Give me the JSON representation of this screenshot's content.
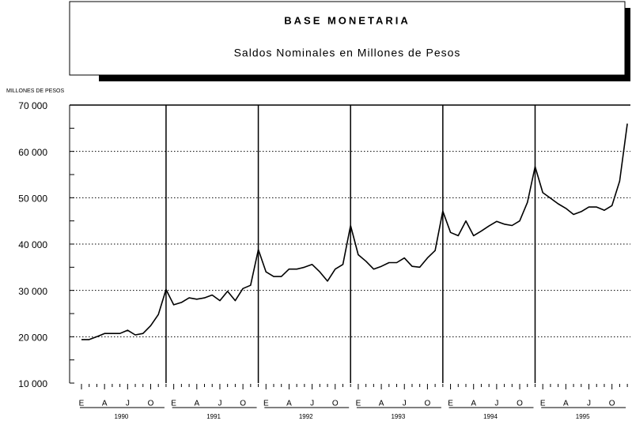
{
  "chart_data": {
    "type": "line",
    "title": "BASE MONETARIA",
    "subtitle": "Saldos Nominales en Millones de Pesos",
    "y_axis_label": "MILLONES  DE PESOS",
    "categories": [
      "E",
      null,
      null,
      "A",
      null,
      null,
      "J",
      null,
      null,
      "O",
      null,
      null,
      "E",
      null,
      null,
      "A",
      null,
      null,
      "J",
      null,
      null,
      "O",
      null,
      null,
      "E",
      null,
      null,
      "A",
      null,
      null,
      "J",
      null,
      null,
      "O",
      null,
      null,
      "E",
      null,
      null,
      "A",
      null,
      null,
      "J",
      null,
      null,
      "O",
      null,
      null,
      "E",
      null,
      null,
      "A",
      null,
      null,
      "J",
      null,
      null,
      "O",
      null,
      null,
      "E",
      null,
      null,
      "A",
      null,
      null,
      "J",
      null,
      null,
      "O",
      null,
      null
    ],
    "years": [
      "1990",
      "1991",
      "1992",
      "1993",
      "1994",
      "1995"
    ],
    "series": [
      {
        "name": "Base monetaria",
        "color": "#000000",
        "values": [
          19400,
          19400,
          20000,
          20700,
          20700,
          20700,
          21400,
          20400,
          20700,
          22400,
          24800,
          30200,
          26900,
          27400,
          28400,
          28100,
          28400,
          29000,
          27800,
          29800,
          27800,
          30400,
          31100,
          38800,
          34000,
          33000,
          33000,
          34600,
          34600,
          35000,
          35600,
          34000,
          32000,
          34600,
          35600,
          44000,
          37700,
          36300,
          34600,
          35200,
          36000,
          36000,
          37000,
          35200,
          35000,
          37000,
          38600,
          47100,
          42500,
          41800,
          45000,
          41800,
          42800,
          43900,
          44900,
          44300,
          44000,
          45000,
          49000,
          56700,
          51100,
          49900,
          48700,
          47700,
          46400,
          47000,
          48000,
          48000,
          47300,
          48300,
          53600,
          66000
        ]
      }
    ],
    "ylim": [
      10000,
      70000
    ],
    "yticks": [
      {
        "value": 10000,
        "label": "10 000"
      },
      {
        "value": 20000,
        "label": "20 000"
      },
      {
        "value": 30000,
        "label": "30 000"
      },
      {
        "value": 40000,
        "label": "40 000"
      },
      {
        "value": 50000,
        "label": "50 000"
      },
      {
        "value": 60000,
        "label": "60 000"
      },
      {
        "value": 70000,
        "label": "70 000"
      }
    ],
    "grid": true
  }
}
